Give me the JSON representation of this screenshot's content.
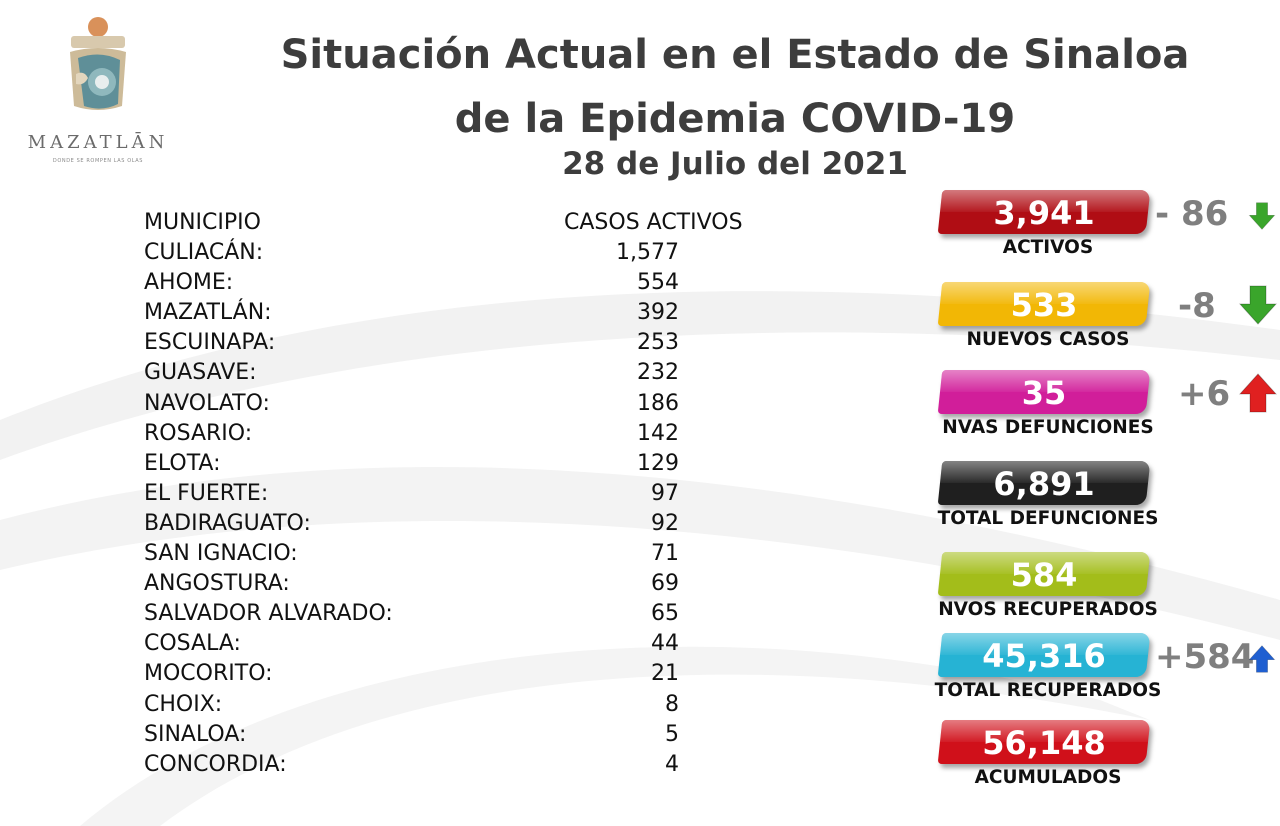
{
  "header": {
    "logo": {
      "icon": "mazatlan-logo-icon",
      "name": "MAZATLĀN",
      "tagline": "DONDE SE ROMPEN LAS OLAS"
    },
    "title_line1": "Situación Actual en el Estado de Sinaloa",
    "title_line2": "de la Epidemia COVID-19",
    "date": "28 de Julio del 2021"
  },
  "table": {
    "headers": {
      "municipio": "MUNICIPIO",
      "casos": "CASOS ACTIVOS"
    },
    "rows": [
      {
        "municipio": "CULIACÁN:",
        "casos": "1,577"
      },
      {
        "municipio": "AHOME:",
        "casos": "554"
      },
      {
        "municipio": "MAZATLÁN:",
        "casos": "392"
      },
      {
        "municipio": "ESCUINAPA:",
        "casos": "253"
      },
      {
        "municipio": "GUASAVE:",
        "casos": "232"
      },
      {
        "municipio": "NAVOLATO:",
        "casos": "186"
      },
      {
        "municipio": "ROSARIO:",
        "casos": "142"
      },
      {
        "municipio": "ELOTA:",
        "casos": "129"
      },
      {
        "municipio": "EL FUERTE:",
        "casos": "97"
      },
      {
        "municipio": "BADIRAGUATO:",
        "casos": "92"
      },
      {
        "municipio": "SAN IGNACIO:",
        "casos": "71"
      },
      {
        "municipio": "ANGOSTURA:",
        "casos": "69"
      },
      {
        "municipio": "SALVADOR ALVARADO:",
        "casos": "65"
      },
      {
        "municipio": "COSALA:",
        "casos": "44"
      },
      {
        "municipio": "MOCORITO:",
        "casos": "21"
      },
      {
        "municipio": "CHOIX:",
        "casos": "8"
      },
      {
        "municipio": "SINALOA:",
        "casos": "5"
      },
      {
        "municipio": "CONCORDIA:",
        "casos": "4"
      }
    ]
  },
  "stats": [
    {
      "value": "3,941",
      "label": "ACTIVOS",
      "color": "#b00d14",
      "delta": "- 86",
      "arrow": "down-arrow-icon",
      "arrow_color": "#3aa52b"
    },
    {
      "value": "533",
      "label": "NUEVOS CASOS",
      "color": "#f2b705",
      "delta": "-8",
      "arrow": "down-arrow-icon",
      "arrow_color": "#3aa52b"
    },
    {
      "value": "35",
      "label": "NVAS DEFUNCIONES",
      "color": "#d11e9a",
      "delta": "+6",
      "arrow": "up-arrow-icon",
      "arrow_color": "#e02020"
    },
    {
      "value": "6,891",
      "label": "TOTAL DEFUNCIONES",
      "color": "#1f1f1f",
      "delta": "",
      "arrow": "",
      "arrow_color": ""
    },
    {
      "value": "584",
      "label": "NVOS RECUPERADOS",
      "color": "#a3bd1a",
      "delta": "",
      "arrow": "",
      "arrow_color": ""
    },
    {
      "value": "45,316",
      "label": "TOTAL RECUPERADOS",
      "color": "#26b3d4",
      "delta": "+584",
      "arrow": "up-arrow-icon",
      "arrow_color": "#1f5fd1"
    },
    {
      "value": "56,148",
      "label": "ACUMULADOS",
      "color": "#d0101a",
      "delta": "",
      "arrow": "",
      "arrow_color": ""
    }
  ]
}
